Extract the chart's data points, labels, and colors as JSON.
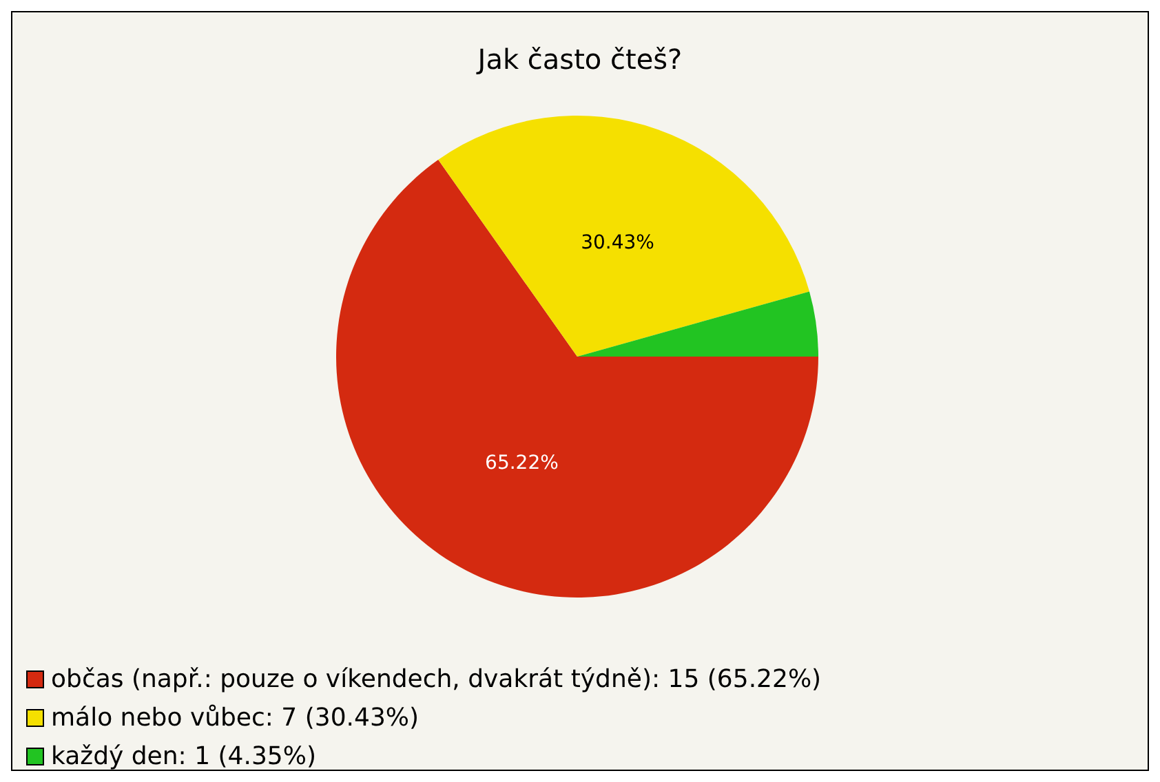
{
  "chart_data": {
    "type": "pie",
    "title": "Jak často čteš?",
    "categories": [
      "občas (např.: pouze o víkendech, dvakrát týdně): 15 (65.22%)",
      "málo nebo vůbec: 7 (30.43%)",
      "každý den: 1 (4.35%)"
    ],
    "values": [
      65.22,
      30.43,
      4.35
    ],
    "colors": [
      "#d42a10",
      "#f5e000",
      "#22c422"
    ],
    "value_labels": [
      "65.22%",
      "30.43%",
      null
    ],
    "legend": "bottom left"
  }
}
